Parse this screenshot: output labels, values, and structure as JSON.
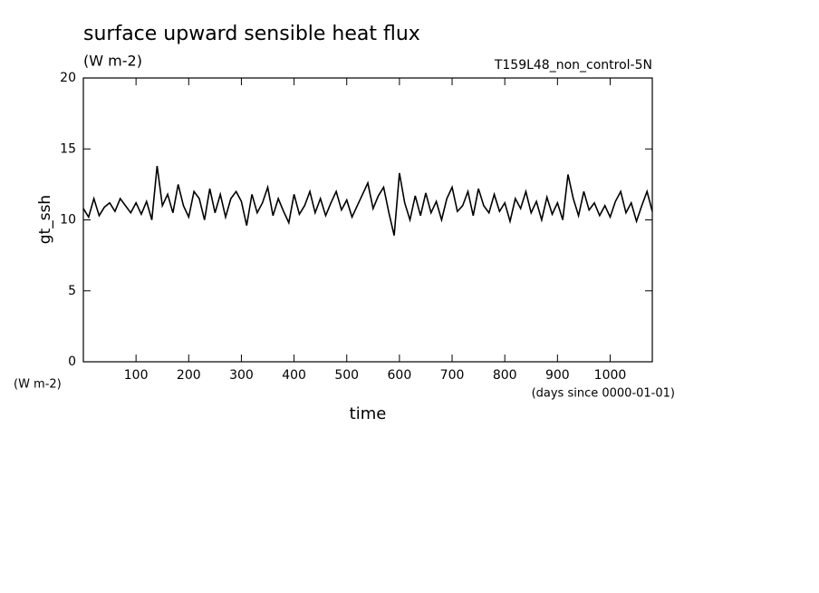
{
  "chart_data": {
    "type": "line",
    "title": "surface upward sensible heat flux",
    "subtitle": "(W m-2)",
    "annotation": "T159L48_non_control-5N",
    "ylabel": "gt_ssh",
    "ylabel_units": "(W m-2)",
    "xlabel": "time",
    "xlabel_units": "(days since 0000-01-01)",
    "x": [
      0,
      10,
      20,
      30,
      40,
      50,
      60,
      70,
      80,
      90,
      100,
      110,
      120,
      130,
      140,
      150,
      160,
      170,
      180,
      190,
      200,
      210,
      220,
      230,
      240,
      250,
      260,
      270,
      280,
      290,
      300,
      310,
      320,
      330,
      340,
      350,
      360,
      370,
      380,
      390,
      400,
      410,
      420,
      430,
      440,
      450,
      460,
      470,
      480,
      490,
      500,
      510,
      520,
      530,
      540,
      550,
      560,
      570,
      580,
      590,
      600,
      610,
      620,
      630,
      640,
      650,
      660,
      670,
      680,
      690,
      700,
      710,
      720,
      730,
      740,
      750,
      760,
      770,
      780,
      790,
      800,
      810,
      820,
      830,
      840,
      850,
      860,
      870,
      880,
      890,
      900,
      910,
      920,
      930,
      940,
      950,
      960,
      970,
      980,
      990,
      1000,
      1010,
      1020,
      1030,
      1040,
      1050,
      1060,
      1070,
      1080
    ],
    "values": [
      10.8,
      10.2,
      11.5,
      10.3,
      10.9,
      11.2,
      10.6,
      11.5,
      11.0,
      10.5,
      11.2,
      10.4,
      11.3,
      10.0,
      13.8,
      11.0,
      11.8,
      10.5,
      12.5,
      11.0,
      10.2,
      12.0,
      11.5,
      10.0,
      12.2,
      10.5,
      11.8,
      10.2,
      11.5,
      12.0,
      11.3,
      9.6,
      11.8,
      10.5,
      11.2,
      12.3,
      10.3,
      11.5,
      10.6,
      9.8,
      11.8,
      10.4,
      11.0,
      12.0,
      10.5,
      11.5,
      10.3,
      11.2,
      12.0,
      10.7,
      11.4,
      10.2,
      11.0,
      11.8,
      12.6,
      10.8,
      11.7,
      12.3,
      10.5,
      8.9,
      13.3,
      11.2,
      10.0,
      11.7,
      10.3,
      11.9,
      10.5,
      11.3,
      10.0,
      11.5,
      12.3,
      10.6,
      11.0,
      12.0,
      10.3,
      12.2,
      11.0,
      10.5,
      11.8,
      10.6,
      11.2,
      9.9,
      11.5,
      10.8,
      12.0,
      10.5,
      11.3,
      10.0,
      11.6,
      10.4,
      11.2,
      10.0,
      13.2,
      11.5,
      10.3,
      12.0,
      10.7,
      11.2,
      10.3,
      11.0,
      10.2,
      11.3,
      12.0,
      10.5,
      11.2,
      9.9,
      11.0,
      12.0,
      10.6
    ],
    "color": "#000000",
    "xlim": [
      0,
      1080
    ],
    "ylim": [
      0,
      20
    ],
    "xticks": [
      100,
      200,
      300,
      400,
      500,
      600,
      700,
      800,
      900,
      1000
    ],
    "yticks": [
      0,
      5,
      10,
      15,
      20
    ]
  }
}
